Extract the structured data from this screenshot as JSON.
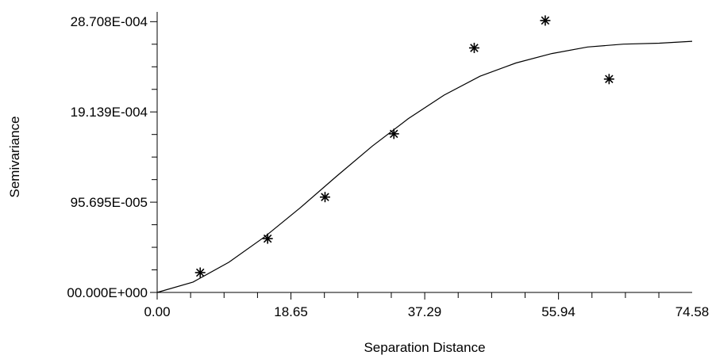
{
  "chart_data": {
    "type": "scatter",
    "xlabel": "Separation Distance",
    "ylabel": "Semivariance",
    "xlim": [
      0,
      74.58
    ],
    "ylim": [
      0,
      0.0028708
    ],
    "x_tick_values": [
      0,
      18.65,
      37.29,
      55.94,
      74.58
    ],
    "x_tick_labels": [
      "0.00",
      "18.65",
      "37.29",
      "55.94",
      "74.58"
    ],
    "x_minor_step": 4.6625,
    "y_tick_values": [
      0,
      0.00095695,
      0.0019139,
      0.0028708
    ],
    "y_tick_labels": [
      "00.000E+000",
      "95.695E-005",
      "19.139E-004",
      "28.708E-004"
    ],
    "y_minor_step": 0.000239,
    "grid": false,
    "marker": "asterisk",
    "series": [
      {
        "type": "scatter",
        "x": [
          6.0,
          15.4,
          23.4,
          33.0,
          44.2,
          54.1,
          63.0
        ],
        "y": [
          0.00021,
          0.00057,
          0.00101,
          0.00168,
          0.00259,
          0.00288,
          0.00226
        ]
      },
      {
        "type": "line",
        "x": [
          0,
          5,
          10,
          15,
          20,
          25,
          30,
          35,
          40,
          45,
          50,
          55,
          60,
          65,
          70,
          74.58
        ],
        "y": [
          0,
          0.00011,
          0.00032,
          0.00059,
          0.0009,
          0.00123,
          0.00155,
          0.00184,
          0.00209,
          0.00229,
          0.00243,
          0.00253,
          0.0026,
          0.00263,
          0.00264,
          0.00266
        ]
      }
    ]
  }
}
